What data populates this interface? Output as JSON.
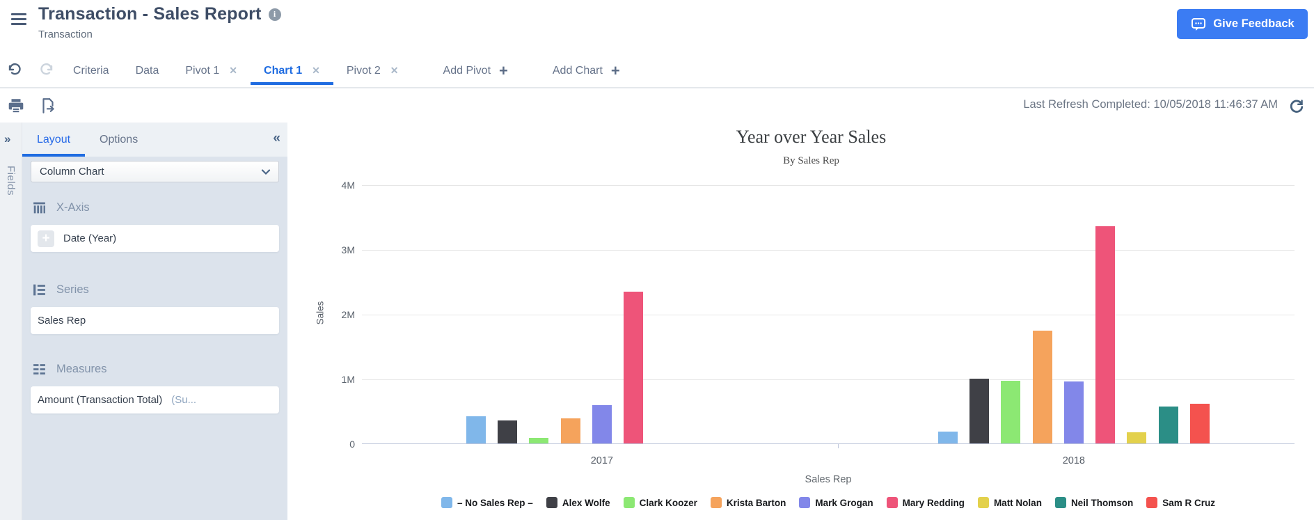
{
  "header": {
    "title": "Transaction - Sales Report",
    "subtitle": "Transaction",
    "feedback_label": "Give Feedback"
  },
  "tabs": {
    "items": [
      {
        "label": "Criteria",
        "closable": false,
        "active": false
      },
      {
        "label": "Data",
        "closable": false,
        "active": false
      },
      {
        "label": "Pivot 1",
        "closable": true,
        "active": false
      },
      {
        "label": "Chart 1",
        "closable": true,
        "active": true
      },
      {
        "label": "Pivot 2",
        "closable": true,
        "active": false
      }
    ],
    "add_buttons": [
      {
        "label": "Add Pivot"
      },
      {
        "label": "Add Chart"
      }
    ]
  },
  "toolbar": {
    "last_refresh": "Last Refresh Completed: 10/05/2018 11:46:37 AM"
  },
  "panel": {
    "rail_label": "Fields",
    "tabs": [
      "Layout",
      "Options"
    ],
    "active_tab": "Layout",
    "chart_type": "Column Chart",
    "sections": [
      {
        "icon": "x-axis-icon",
        "label": "X-Axis",
        "fields": [
          {
            "text": "Date (Year)",
            "grip": true,
            "suffix": ""
          }
        ]
      },
      {
        "icon": "series-icon",
        "label": "Series",
        "fields": [
          {
            "text": "Sales Rep",
            "grip": false,
            "suffix": ""
          }
        ]
      },
      {
        "icon": "measures-icon",
        "label": "Measures",
        "fields": [
          {
            "text": "Amount (Transaction Total)",
            "grip": false,
            "suffix": " (Su..."
          }
        ]
      }
    ]
  },
  "chart_data": {
    "type": "bar",
    "title": "Year over Year Sales",
    "subtitle": "By Sales Rep",
    "xlabel": "Sales Rep",
    "ylabel": "Sales",
    "ylim": [
      0,
      4000000
    ],
    "grid": true,
    "legend_position": "bottom",
    "yticks": [
      {
        "label": "4M",
        "value": 4000000
      },
      {
        "label": "3M",
        "value": 3000000
      },
      {
        "label": "2M",
        "value": 2000000
      },
      {
        "label": "1M",
        "value": 1000000
      },
      {
        "label": "0",
        "value": 0
      }
    ],
    "categories": [
      "2017",
      "2018"
    ],
    "series": [
      {
        "name": "– No Sales Rep –",
        "color": "#80b7ea",
        "values": [
          420000,
          180000
        ]
      },
      {
        "name": "Alex Wolfe",
        "color": "#3f4046",
        "values": [
          350000,
          1000000
        ]
      },
      {
        "name": "Clark Koozer",
        "color": "#8ce873",
        "values": [
          90000,
          970000
        ]
      },
      {
        "name": "Krista Barton",
        "color": "#f5a35c",
        "values": [
          390000,
          1740000
        ]
      },
      {
        "name": "Mark Grogan",
        "color": "#8287e9",
        "values": [
          590000,
          960000
        ]
      },
      {
        "name": "Mary Redding",
        "color": "#ee5479",
        "values": [
          2340000,
          3360000
        ]
      },
      {
        "name": "Matt Nolan",
        "color": "#e3d14c",
        "values": [
          0,
          170000
        ]
      },
      {
        "name": "Neil Thomson",
        "color": "#2b8e86",
        "values": [
          0,
          570000
        ]
      },
      {
        "name": "Sam R Cruz",
        "color": "#f4524e",
        "values": [
          0,
          610000
        ]
      }
    ]
  }
}
